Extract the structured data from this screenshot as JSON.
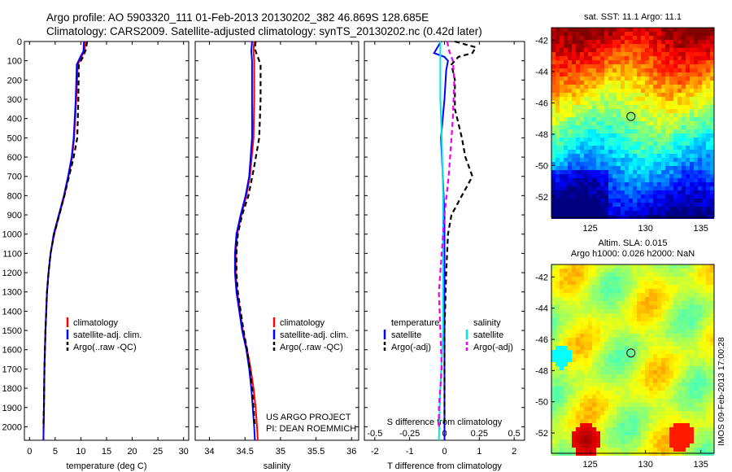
{
  "header": {
    "line1": "Argo profile: AO 5903320_111 01-Feb-2013 20130202_382 46.869S 128.685E",
    "line2": "Climatology: CARS2009. Satellite-adjusted climatology: synTS_20130202.nc (0.42d later)"
  },
  "colors": {
    "climatology": "#ff0000",
    "satellite": "#0000ff",
    "argo": "#000000",
    "sal_satellite": "#00e5e5",
    "sal_argo": "#ee00ee"
  },
  "chart_data": [
    {
      "type": "line",
      "id": "temperature",
      "xlabel": "temperature (deg C)",
      "ylabel": "",
      "xlim": [
        -1,
        31
      ],
      "ylim": [
        2070,
        0
      ],
      "xticks": [
        0,
        5,
        10,
        15,
        20,
        25,
        30
      ],
      "yticks": [
        0,
        100,
        200,
        300,
        400,
        500,
        600,
        700,
        800,
        900,
        1000,
        1100,
        1200,
        1300,
        1400,
        1500,
        1600,
        1700,
        1800,
        1900,
        2000
      ],
      "legend": [
        "climatology",
        "satellite-adj. clim.",
        "Argo(..raw -QC)"
      ],
      "series": [
        {
          "name": "climatology",
          "style": "solid",
          "color": "#ff0000",
          "depth": [
            0,
            50,
            80,
            120,
            300,
            500,
            600,
            700,
            800,
            900,
            1000,
            1100,
            1200,
            1300,
            1500,
            1700,
            1900,
            2070
          ],
          "values": [
            10.8,
            10.7,
            10.1,
            9.4,
            9.1,
            8.7,
            8.3,
            7.6,
            6.8,
            5.8,
            4.8,
            4.1,
            3.7,
            3.4,
            3.1,
            2.9,
            2.8,
            2.7
          ]
        },
        {
          "name": "satellite-adj. clim.",
          "style": "solid",
          "color": "#0000ff",
          "depth": [
            0,
            50,
            80,
            120,
            300,
            500,
            600,
            700,
            800,
            900,
            1000,
            1100,
            1200,
            1300,
            1500,
            1700,
            1900,
            2070
          ],
          "values": [
            10.6,
            10.5,
            9.9,
            9.2,
            9.0,
            8.6,
            8.2,
            7.5,
            6.7,
            5.7,
            4.7,
            4.1,
            3.7,
            3.4,
            3.1,
            2.9,
            2.8,
            2.7
          ]
        },
        {
          "name": "Argo(..raw -QC)",
          "style": "dashed",
          "color": "#000000",
          "depth": [
            0,
            40,
            80,
            120,
            300,
            500,
            600,
            700,
            800,
            900,
            1000,
            1100,
            1200,
            1300,
            1500,
            1700,
            1900,
            2000
          ],
          "values": [
            11.2,
            11.0,
            10.4,
            9.6,
            9.5,
            9.3,
            8.6,
            7.7,
            6.8,
            5.8,
            4.8,
            4.1,
            3.7,
            3.4,
            3.1,
            2.9,
            2.8,
            2.7
          ]
        }
      ]
    },
    {
      "type": "line",
      "id": "salinity",
      "xlabel": "salinity",
      "ylabel": "",
      "xlim": [
        33.8,
        36.1
      ],
      "ylim": [
        2070,
        0
      ],
      "xticks": [
        34,
        34.5,
        35,
        35.5,
        36
      ],
      "legend": [
        "climatology",
        "satellite-adj. clim.",
        "Argo(..raw -QC)"
      ],
      "annotation": [
        "US ARGO PROJECT",
        "PI: DEAN ROEMMICH"
      ],
      "series": [
        {
          "name": "climatology",
          "style": "solid",
          "color": "#ff0000",
          "depth": [
            0,
            50,
            100,
            300,
            500,
            700,
            800,
            900,
            1000,
            1100,
            1200,
            1300,
            1400,
            1500,
            1600,
            1700,
            1800,
            1900,
            2000,
            2070
          ],
          "values": [
            34.63,
            34.62,
            34.63,
            34.63,
            34.62,
            34.57,
            34.52,
            34.45,
            34.39,
            34.37,
            34.37,
            34.39,
            34.43,
            34.47,
            34.53,
            34.58,
            34.62,
            34.65,
            34.67,
            34.68
          ]
        },
        {
          "name": "satellite-adj. clim.",
          "style": "solid",
          "color": "#0000ff",
          "depth": [
            0,
            50,
            100,
            300,
            500,
            700,
            800,
            900,
            1000,
            1100,
            1200,
            1300,
            1400,
            1500,
            1600,
            1700,
            1800,
            1900,
            2000,
            2070
          ],
          "values": [
            34.6,
            34.59,
            34.6,
            34.6,
            34.6,
            34.56,
            34.51,
            34.44,
            34.38,
            34.36,
            34.36,
            34.38,
            34.42,
            34.46,
            34.52,
            34.56,
            34.59,
            34.61,
            34.63,
            34.64
          ]
        },
        {
          "name": "Argo(..raw -QC)",
          "style": "dashed",
          "color": "#000000",
          "depth": [
            0,
            40,
            80,
            120,
            300,
            500,
            650,
            800,
            900,
            1000,
            1100,
            1200,
            1300,
            1400,
            1500,
            1600,
            1700,
            1800,
            1900,
            2000
          ],
          "values": [
            34.65,
            34.64,
            34.68,
            34.72,
            34.72,
            34.7,
            34.63,
            34.55,
            34.46,
            34.4,
            34.38,
            34.38,
            34.4,
            34.44,
            34.48,
            34.53,
            34.57,
            34.6,
            34.62,
            34.64
          ]
        }
      ]
    },
    {
      "type": "line",
      "id": "difference",
      "xlabel": "T difference from climatology",
      "xlabel2": "S difference from climatology",
      "xlim": [
        -2.3,
        2.3
      ],
      "ylim": [
        2070,
        0
      ],
      "xticks": [
        -2,
        -1,
        0,
        1,
        2
      ],
      "xticks_s": [
        -0.5,
        -0.25,
        0,
        0.25,
        0.5
      ],
      "xticks_s_labels": [
        "-0.5",
        "-0.25",
        "0",
        "0.25",
        "0.5"
      ],
      "legend_t": {
        "title": "temperature",
        "items": [
          "satellite",
          "Argo(-adj)"
        ]
      },
      "legend_s": {
        "title": "salinity",
        "items": [
          "satellite",
          "Argo(-adj)"
        ]
      },
      "series": [
        {
          "name": "T satellite",
          "style": "solid",
          "color": "#0000ff",
          "depth": [
            0,
            30,
            60,
            80,
            100,
            150,
            300,
            500,
            700,
            900,
            1100,
            1300,
            1500,
            1700,
            1900,
            2070
          ],
          "values": [
            -0.1,
            -0.2,
            -0.3,
            0.0,
            0.1,
            0.05,
            0.0,
            -0.1,
            -0.05,
            0.0,
            0.0,
            0.0,
            0.0,
            0.0,
            0.0,
            0.0
          ]
        },
        {
          "name": "T Argo(-adj)",
          "style": "dashed",
          "color": "#000000",
          "depth": [
            0,
            30,
            60,
            80,
            120,
            200,
            350,
            500,
            600,
            700,
            800,
            900,
            1000,
            1200,
            1500,
            1800,
            2000
          ],
          "values": [
            0.3,
            0.9,
            0.8,
            0.4,
            0.2,
            0.3,
            0.3,
            0.5,
            0.6,
            0.8,
            0.5,
            0.2,
            0.1,
            0.05,
            0.0,
            0.0,
            0.0
          ]
        },
        {
          "name": "S satellite",
          "style": "solid",
          "color": "#00e5e5",
          "depth": [
            0,
            50,
            100,
            300,
            500,
            800,
            1000,
            1200,
            1500,
            1800,
            2070
          ],
          "values": [
            -0.03,
            -0.03,
            -0.03,
            -0.03,
            -0.02,
            -0.01,
            -0.01,
            -0.01,
            -0.01,
            -0.03,
            -0.04
          ]
        },
        {
          "name": "S Argo(-adj)",
          "style": "dashed",
          "color": "#ee00ee",
          "depth": [
            0,
            40,
            100,
            200,
            400,
            600,
            700,
            900,
            1100,
            1300,
            1500,
            1700,
            1900,
            2000
          ],
          "values": [
            0.02,
            0.03,
            0.06,
            0.07,
            0.06,
            0.04,
            0.03,
            0.0,
            -0.02,
            -0.04,
            -0.03,
            -0.02,
            -0.04,
            -0.04
          ]
        }
      ]
    }
  ],
  "maps": [
    {
      "id": "sst",
      "title_lines": [
        "sat. SST: 11.1 Argo: 11.1"
      ],
      "kind": "sst",
      "xlim": [
        121.5,
        136.2
      ],
      "ylim": [
        -53.3,
        -41.2
      ],
      "xticks": [
        125,
        130,
        135
      ],
      "yticks": [
        -42,
        -44,
        -46,
        -48,
        -50,
        -52
      ],
      "marker": {
        "lon": 128.685,
        "lat": -46.869
      }
    },
    {
      "id": "sla",
      "title_lines": [
        "Altim. SLA: 0.015",
        "Argo h1000: 0.026 h2000: NaN"
      ],
      "kind": "sla",
      "xlim": [
        121.5,
        136.2
      ],
      "ylim": [
        -53.3,
        -41.2
      ],
      "xticks": [
        125,
        130,
        135
      ],
      "yticks": [
        -42,
        -44,
        -46,
        -48,
        -50,
        -52
      ],
      "marker": {
        "lon": 128.685,
        "lat": -46.869
      }
    }
  ],
  "side_label": "IMOS 09-Feb-2013 17:00:28"
}
